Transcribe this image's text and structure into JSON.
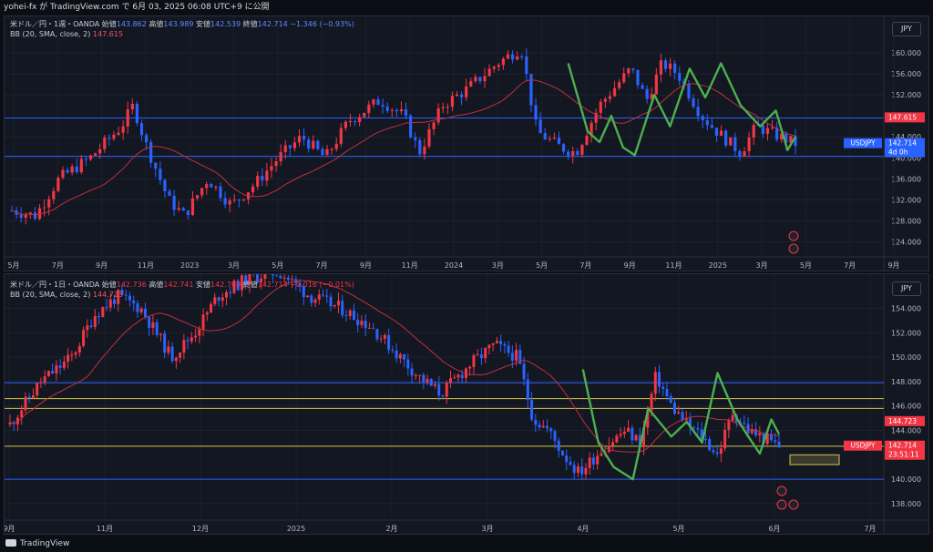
{
  "header": {
    "title": "yohei-fx が TradingView.com で 6月 03, 2025 06:08 UTC+9 に公開"
  },
  "footer": {
    "brand": "TradingView"
  },
  "colors": {
    "up": "#f23645",
    "down": "#2962ff",
    "bb": "#c2303a",
    "drawing": "#4caf50",
    "hline": "#2962ff",
    "yline": "#d4c44a"
  },
  "chart_data": [
    {
      "type": "candlestick",
      "symbol": "米ドル／円・1週・OANDA",
      "ohlc": {
        "open_label": "始値",
        "open": "143.862",
        "high_label": "高値",
        "high": "143.989",
        "low_label": "安値",
        "low": "142.539",
        "close_label": "終値",
        "close": "142.714",
        "change": "−1.346 (−0.93%)"
      },
      "indicator": {
        "label": "BB (20, SMA, close, 2)",
        "value": "147.615"
      },
      "currency": "JPY",
      "y_ticks": [
        "160.000",
        "156.000",
        "152.000",
        "144.000",
        "140.000",
        "136.000",
        "132.000",
        "128.000",
        "124.000"
      ],
      "ylim": [
        121.5,
        164.5
      ],
      "x_ticks": [
        "5月",
        "7月",
        "9月",
        "11月",
        "2023",
        "3月",
        "5月",
        "7月",
        "9月",
        "11月",
        "2024",
        "3月",
        "5月",
        "7月",
        "9月",
        "11月",
        "2025",
        "3月",
        "5月",
        "7月",
        "9月"
      ],
      "price_tags": [
        {
          "label": "147.615",
          "value": 147.615,
          "color": "#f23645"
        },
        {
          "label": "USDJPY",
          "value": 142.714,
          "color": "#2962ff"
        },
        {
          "label": "142.714",
          "value": 142.714,
          "color": "#2962ff"
        },
        {
          "label": "4d 0h",
          "value": 142.714,
          "color": "#2962ff"
        }
      ],
      "horizontal_lines": [
        147.6,
        140.3
      ]
    },
    {
      "type": "candlestick",
      "symbol": "米ドル／円・1日・OANDA",
      "ohlc": {
        "open_label": "始値",
        "open": "142.736",
        "high_label": "高値",
        "high": "142.741",
        "low_label": "安値",
        "low": "142.700",
        "close_label": "終値",
        "close": "142.714",
        "change": "−0.016 (−0.01%)"
      },
      "indicator": {
        "label": "BB (20, SMA, close, 2)",
        "value": "144.723"
      },
      "currency": "JPY",
      "y_ticks": [
        "154.000",
        "152.000",
        "150.000",
        "148.000",
        "146.000",
        "144.000",
        "140.000",
        "138.000"
      ],
      "ylim": [
        136.8,
        156.5
      ],
      "x_ticks": [
        "9月",
        "11月",
        "12月",
        "2025",
        "2月",
        "3月",
        "4月",
        "5月",
        "6月",
        "7月"
      ],
      "price_tags": [
        {
          "label": "144.723",
          "value": 144.723,
          "color": "#f23645"
        },
        {
          "label": "USDJPY",
          "value": 142.714,
          "color": "#f23645"
        },
        {
          "label": "142.714",
          "value": 142.714,
          "color": "#f23645"
        },
        {
          "label": "23:51:11",
          "value": 142.714,
          "color": "#f23645"
        }
      ],
      "horizontal_lines": [
        147.9,
        140.0
      ],
      "yellow_lines": [
        146.6,
        145.8,
        142.7
      ],
      "target_box": {
        "from_value": 142.0,
        "to_value": 141.2
      }
    }
  ]
}
